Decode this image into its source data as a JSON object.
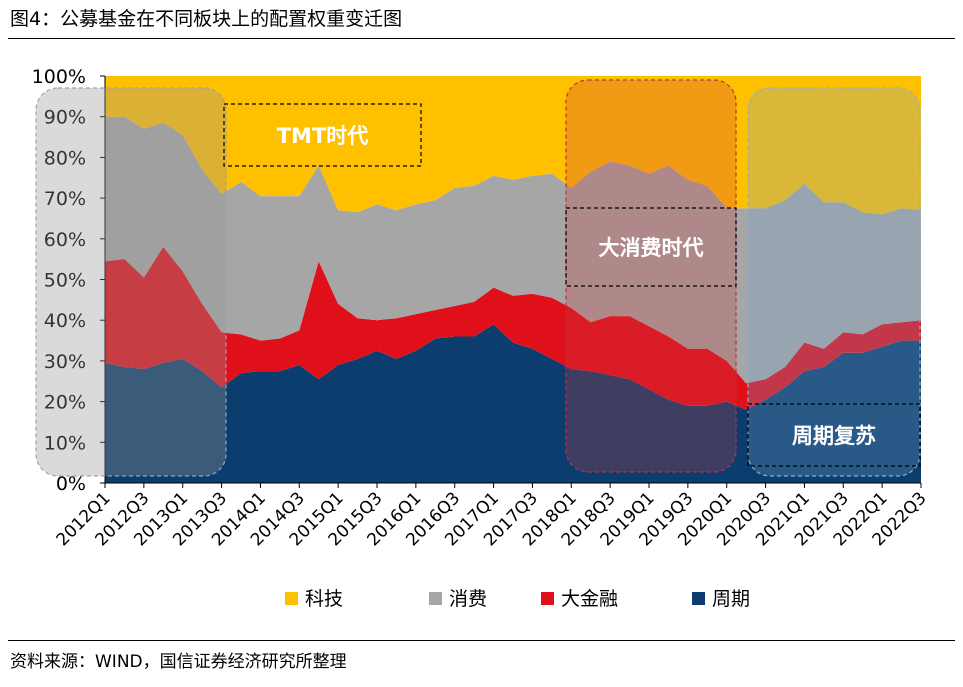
{
  "title": "图4：公募基金在不同板块上的配置权重变迁图",
  "source": "资料来源：WIND，国信证券经济研究所整理",
  "chart_data": {
    "type": "area",
    "stacked": true,
    "categories": [
      "2012Q1",
      "2012Q2",
      "2012Q3",
      "2012Q4",
      "2013Q1",
      "2013Q2",
      "2013Q3",
      "2013Q4",
      "2014Q1",
      "2014Q2",
      "2014Q3",
      "2014Q4",
      "2015Q1",
      "2015Q2",
      "2015Q3",
      "2015Q4",
      "2016Q1",
      "2016Q2",
      "2016Q3",
      "2016Q4",
      "2017Q1",
      "2017Q2",
      "2017Q3",
      "2017Q4",
      "2018Q1",
      "2018Q2",
      "2018Q3",
      "2018Q4",
      "2019Q1",
      "2019Q2",
      "2019Q3",
      "2019Q4",
      "2020Q1",
      "2020Q2",
      "2020Q3",
      "2020Q4",
      "2021Q1",
      "2021Q2",
      "2021Q3",
      "2021Q4",
      "2022Q1",
      "2022Q2",
      "2022Q3"
    ],
    "xtick_labels": [
      "2012Q1",
      "2012Q3",
      "2013Q1",
      "2013Q3",
      "2014Q1",
      "2014Q3",
      "2015Q1",
      "2015Q3",
      "2016Q1",
      "2016Q3",
      "2017Q1",
      "2017Q3",
      "2018Q1",
      "2018Q3",
      "2019Q1",
      "2019Q3",
      "2020Q1",
      "2020Q3",
      "2021Q1",
      "2021Q3",
      "2022Q1",
      "2022Q3"
    ],
    "ytick_labels": [
      "0%",
      "10%",
      "20%",
      "30%",
      "40%",
      "50%",
      "60%",
      "70%",
      "80%",
      "90%",
      "100%"
    ],
    "ylim": [
      0,
      100
    ],
    "series": [
      {
        "name": "周期",
        "color": "#0b3d6e",
        "values": [
          29.5,
          28.5,
          28,
          29.5,
          30.5,
          27.5,
          23.5,
          27,
          27.5,
          27.5,
          29,
          25.5,
          29,
          30.5,
          32.5,
          30.5,
          32.5,
          35.5,
          36,
          36,
          39,
          34.5,
          33,
          30.5,
          28,
          27.5,
          26.5,
          25.5,
          23,
          20.5,
          19,
          19,
          20,
          18,
          20.5,
          23.5,
          27.5,
          28.5,
          32,
          32,
          33.5,
          35,
          35
        ]
      },
      {
        "name": "大金融",
        "color": "#e0101a",
        "values": [
          25,
          26.5,
          22.5,
          28.5,
          21.5,
          16.5,
          13.5,
          9.5,
          7.5,
          8,
          8.5,
          29,
          15,
          10,
          7.5,
          10,
          9,
          7,
          7.5,
          8.5,
          9,
          11.5,
          13.5,
          15,
          15,
          12,
          14.5,
          15.5,
          15.5,
          15.5,
          14,
          14,
          10,
          6.5,
          5,
          5,
          7,
          4.5,
          5,
          4.5,
          5.5,
          4.5,
          5
        ]
      },
      {
        "name": "消费",
        "color": "#a6a6a6",
        "values": [
          35.5,
          35,
          36.5,
          30.5,
          33.5,
          33,
          34,
          37.5,
          35.5,
          35,
          33,
          23.5,
          23,
          26,
          28.5,
          26.5,
          27,
          27,
          29,
          28.5,
          27.5,
          28.5,
          29,
          30.5,
          29.5,
          37,
          38,
          37,
          37.5,
          42,
          41.5,
          40,
          37.5,
          43,
          42,
          41,
          39,
          36,
          32,
          30,
          27,
          28,
          27
        ]
      },
      {
        "name": "科技",
        "color": "#ffc000",
        "values": [
          10,
          10,
          13,
          11.5,
          14.5,
          23,
          29,
          26,
          29.5,
          29.5,
          29.5,
          22,
          33,
          33.5,
          31.5,
          33,
          31.5,
          30.5,
          27.5,
          27,
          24.5,
          25.5,
          24.5,
          24,
          27.5,
          23.5,
          21,
          22,
          24,
          22,
          25.5,
          27,
          32.5,
          32.5,
          32.5,
          30.5,
          26.5,
          31,
          31,
          33.5,
          34,
          32.5,
          33
        ]
      }
    ],
    "legend_position": "bottom-center",
    "grid": false,
    "annotations": [
      {
        "label": "TMT时代",
        "span": [
          "2013Q4",
          "2016Q1"
        ]
      },
      {
        "label": "大消费时代",
        "span": [
          "2018Q2",
          "2020Q1"
        ]
      },
      {
        "label": "周期复苏",
        "span": [
          "2020Q3",
          "2022Q3"
        ]
      }
    ]
  }
}
